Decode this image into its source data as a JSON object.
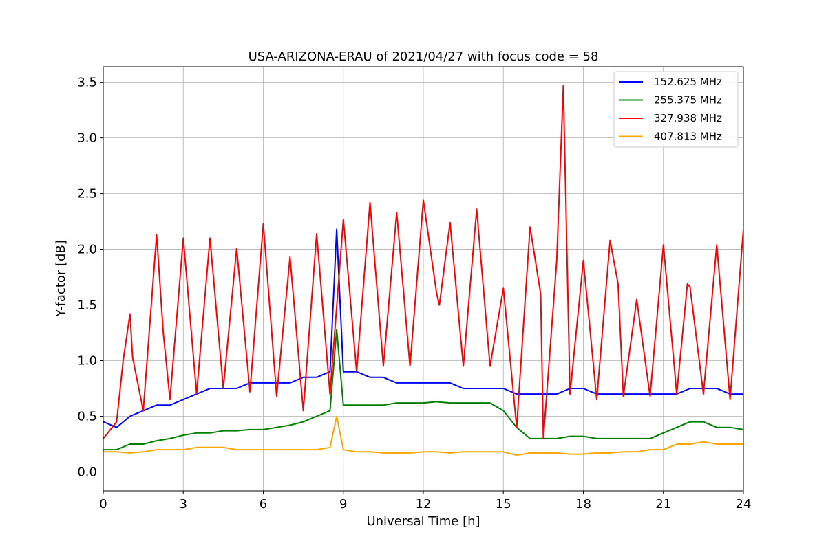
{
  "chart_data": {
    "type": "line",
    "title": "USA-ARIZONA-ERAU of 2021/04/27 with focus code = 58",
    "xlabel": "Universal Time [h]",
    "ylabel": "Y-factor [dB]",
    "xlim": [
      0,
      24
    ],
    "ylim": [
      -0.17,
      3.64
    ],
    "xticks": [
      0,
      3,
      6,
      9,
      12,
      15,
      18,
      21,
      24
    ],
    "yticks": [
      0.0,
      0.5,
      1.0,
      1.5,
      2.0,
      2.5,
      3.0,
      3.5
    ],
    "xtick_labels": [
      "0",
      "3",
      "6",
      "9",
      "12",
      "15",
      "18",
      "21",
      "24"
    ],
    "ytick_labels": [
      "0.0",
      "0.5",
      "1.0",
      "1.5",
      "2.0",
      "2.5",
      "3.0",
      "3.5"
    ],
    "grid": true,
    "legend_position": "top-right",
    "series": [
      {
        "name": "152.625 MHz",
        "color": "#0000ff",
        "x": [
          0,
          0.5,
          1,
          1.5,
          2,
          2.5,
          3,
          3.5,
          4,
          4.5,
          5,
          5.5,
          6,
          6.5,
          7,
          7.5,
          8,
          8.5,
          8.75,
          9,
          9.5,
          10,
          10.5,
          11,
          11.5,
          12,
          12.5,
          13,
          13.5,
          14,
          14.5,
          15,
          15.5,
          16,
          16.5,
          17,
          17.5,
          18,
          18.5,
          19,
          19.5,
          20,
          20.5,
          21,
          21.5,
          22,
          22.5,
          23,
          23.5,
          24
        ],
        "y": [
          0.45,
          0.4,
          0.5,
          0.55,
          0.6,
          0.6,
          0.65,
          0.7,
          0.75,
          0.75,
          0.75,
          0.8,
          0.8,
          0.8,
          0.8,
          0.85,
          0.85,
          0.9,
          2.18,
          0.9,
          0.9,
          0.85,
          0.85,
          0.8,
          0.8,
          0.8,
          0.8,
          0.8,
          0.75,
          0.75,
          0.75,
          0.75,
          0.7,
          0.7,
          0.7,
          0.7,
          0.75,
          0.75,
          0.7,
          0.7,
          0.7,
          0.7,
          0.7,
          0.7,
          0.7,
          0.75,
          0.75,
          0.75,
          0.7,
          0.7
        ]
      },
      {
        "name": "255.375 MHz",
        "color": "#008000",
        "x": [
          0,
          0.5,
          1,
          1.5,
          2,
          2.5,
          3,
          3.5,
          4,
          4.5,
          5,
          5.5,
          6,
          6.5,
          7,
          7.5,
          8,
          8.5,
          8.75,
          9,
          9.5,
          10,
          10.5,
          11,
          11.5,
          12,
          12.5,
          13,
          13.5,
          14,
          14.5,
          15,
          15.5,
          16,
          16.5,
          17,
          17.5,
          18,
          18.5,
          19,
          19.5,
          20,
          20.5,
          21,
          21.5,
          22,
          22.5,
          23,
          23.5,
          24
        ],
        "y": [
          0.2,
          0.2,
          0.25,
          0.25,
          0.28,
          0.3,
          0.33,
          0.35,
          0.35,
          0.37,
          0.37,
          0.38,
          0.38,
          0.4,
          0.42,
          0.45,
          0.5,
          0.55,
          1.28,
          0.6,
          0.6,
          0.6,
          0.6,
          0.62,
          0.62,
          0.62,
          0.63,
          0.62,
          0.62,
          0.62,
          0.62,
          0.55,
          0.4,
          0.3,
          0.3,
          0.3,
          0.32,
          0.32,
          0.3,
          0.3,
          0.3,
          0.3,
          0.3,
          0.35,
          0.4,
          0.45,
          0.45,
          0.4,
          0.4,
          0.38
        ]
      },
      {
        "name": "327.938 MHz",
        "color": "#ff0000",
        "x": [
          0,
          0.5,
          0.75,
          1,
          1.1,
          1.5,
          2,
          2.25,
          2.5,
          3,
          3.5,
          4,
          4.5,
          5,
          5.5,
          6,
          6.5,
          7,
          7.5,
          8,
          8.5,
          9,
          9.5,
          10,
          10.5,
          11,
          11.5,
          12,
          12.5,
          12.6,
          13,
          13.5,
          14,
          14.5,
          15,
          15.5,
          16,
          16.4,
          16.5,
          17,
          17.25,
          17.5,
          18,
          18.5,
          19,
          19.3,
          19.5,
          20,
          20.5,
          21,
          21.5,
          21.9,
          22,
          22.5,
          23,
          23.5,
          24
        ],
        "y": [
          0.3,
          0.45,
          1.01,
          1.42,
          1.03,
          0.55,
          2.13,
          1.25,
          0.65,
          2.1,
          0.7,
          2.1,
          0.75,
          2.01,
          0.72,
          2.23,
          0.68,
          1.93,
          0.55,
          2.14,
          0.7,
          2.27,
          0.9,
          2.42,
          0.95,
          2.33,
          0.95,
          2.44,
          1.6,
          1.5,
          2.24,
          0.95,
          2.36,
          0.95,
          1.65,
          0.4,
          2.2,
          1.6,
          0.3,
          1.9,
          3.47,
          0.7,
          1.9,
          0.65,
          2.08,
          1.69,
          0.68,
          1.55,
          0.68,
          2.04,
          0.7,
          1.69,
          1.66,
          0.7,
          2.04,
          0.65,
          2.18
        ]
      },
      {
        "name": "407.813 MHz",
        "color": "#ffa500",
        "x": [
          0,
          0.5,
          1,
          1.5,
          2,
          2.5,
          3,
          3.5,
          4,
          4.5,
          5,
          5.5,
          6,
          6.5,
          7,
          7.5,
          8,
          8.5,
          8.75,
          9,
          9.5,
          10,
          10.5,
          11,
          11.5,
          12,
          12.5,
          13,
          13.5,
          14,
          14.5,
          15,
          15.5,
          16,
          16.5,
          17,
          17.5,
          18,
          18.5,
          19,
          19.5,
          20,
          20.5,
          21,
          21.5,
          22,
          22.5,
          23,
          23.5,
          24
        ],
        "y": [
          0.18,
          0.18,
          0.17,
          0.18,
          0.2,
          0.2,
          0.2,
          0.22,
          0.22,
          0.22,
          0.2,
          0.2,
          0.2,
          0.2,
          0.2,
          0.2,
          0.2,
          0.22,
          0.5,
          0.2,
          0.18,
          0.18,
          0.17,
          0.17,
          0.17,
          0.18,
          0.18,
          0.17,
          0.18,
          0.18,
          0.18,
          0.18,
          0.15,
          0.17,
          0.17,
          0.17,
          0.16,
          0.16,
          0.17,
          0.17,
          0.18,
          0.18,
          0.2,
          0.2,
          0.25,
          0.25,
          0.27,
          0.25,
          0.25,
          0.25
        ]
      }
    ]
  }
}
